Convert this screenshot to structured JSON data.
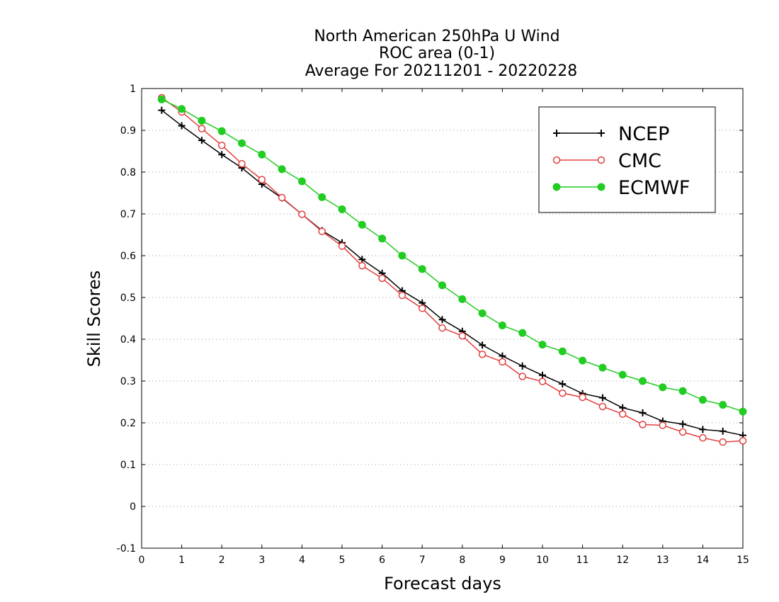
{
  "chart_data": {
    "type": "line",
    "title_lines": [
      "North American 250hPa U Wind",
      "ROC area (0-1)",
      "Average For 20211201 - 20220228"
    ],
    "xlabel": "Forecast days",
    "ylabel": "Skill Scores",
    "xlim": [
      0,
      15
    ],
    "ylim": [
      -0.1,
      1
    ],
    "xticks": [
      0,
      1,
      2,
      3,
      4,
      5,
      6,
      7,
      8,
      9,
      10,
      11,
      12,
      13,
      14,
      15
    ],
    "yticks": [
      -0.1,
      0,
      0.1,
      0.2,
      0.3,
      0.4,
      0.5,
      0.6,
      0.7,
      0.8,
      0.9,
      1
    ],
    "ytick_labels": [
      "-0.1",
      "0",
      "0.1",
      "0.2",
      "0.3",
      "0.4",
      "0.5",
      "0.6",
      "0.7",
      "0.8",
      "0.9",
      "1"
    ],
    "grid": "horizontal dotted",
    "legend_position": "top-right",
    "x": [
      0.5,
      1,
      1.5,
      2,
      2.5,
      3,
      3.5,
      4,
      4.5,
      5,
      5.5,
      6,
      6.5,
      7,
      7.5,
      8,
      8.5,
      9,
      9.5,
      10,
      10.5,
      11,
      11.5,
      12,
      12.5,
      13,
      13.5,
      14,
      14.5,
      15
    ],
    "series": [
      {
        "name": "NCEP",
        "color": "#000000",
        "marker": "plus",
        "values": [
          0.948,
          0.911,
          0.876,
          0.842,
          0.81,
          0.771,
          0.738,
          0.699,
          0.66,
          0.631,
          0.591,
          0.558,
          0.516,
          0.487,
          0.447,
          0.419,
          0.386,
          0.36,
          0.336,
          0.314,
          0.293,
          0.27,
          0.26,
          0.236,
          0.224,
          0.204,
          0.197,
          0.184,
          0.18,
          0.17
        ]
      },
      {
        "name": "CMC",
        "color": "#e0403f",
        "marker": "open-circle",
        "values": [
          0.978,
          0.944,
          0.904,
          0.864,
          0.82,
          0.782,
          0.739,
          0.699,
          0.658,
          0.623,
          0.576,
          0.546,
          0.505,
          0.474,
          0.427,
          0.408,
          0.364,
          0.346,
          0.311,
          0.299,
          0.271,
          0.261,
          0.239,
          0.221,
          0.196,
          0.194,
          0.178,
          0.164,
          0.154,
          0.157
        ]
      },
      {
        "name": "ECMWF",
        "color": "#22cc22",
        "marker": "filled-circle",
        "values": [
          0.974,
          0.951,
          0.923,
          0.898,
          0.869,
          0.842,
          0.807,
          0.778,
          0.74,
          0.711,
          0.674,
          0.641,
          0.6,
          0.568,
          0.529,
          0.496,
          0.462,
          0.433,
          0.415,
          0.387,
          0.371,
          0.349,
          0.332,
          0.315,
          0.3,
          0.285,
          0.276,
          0.255,
          0.243,
          0.227
        ]
      }
    ]
  }
}
